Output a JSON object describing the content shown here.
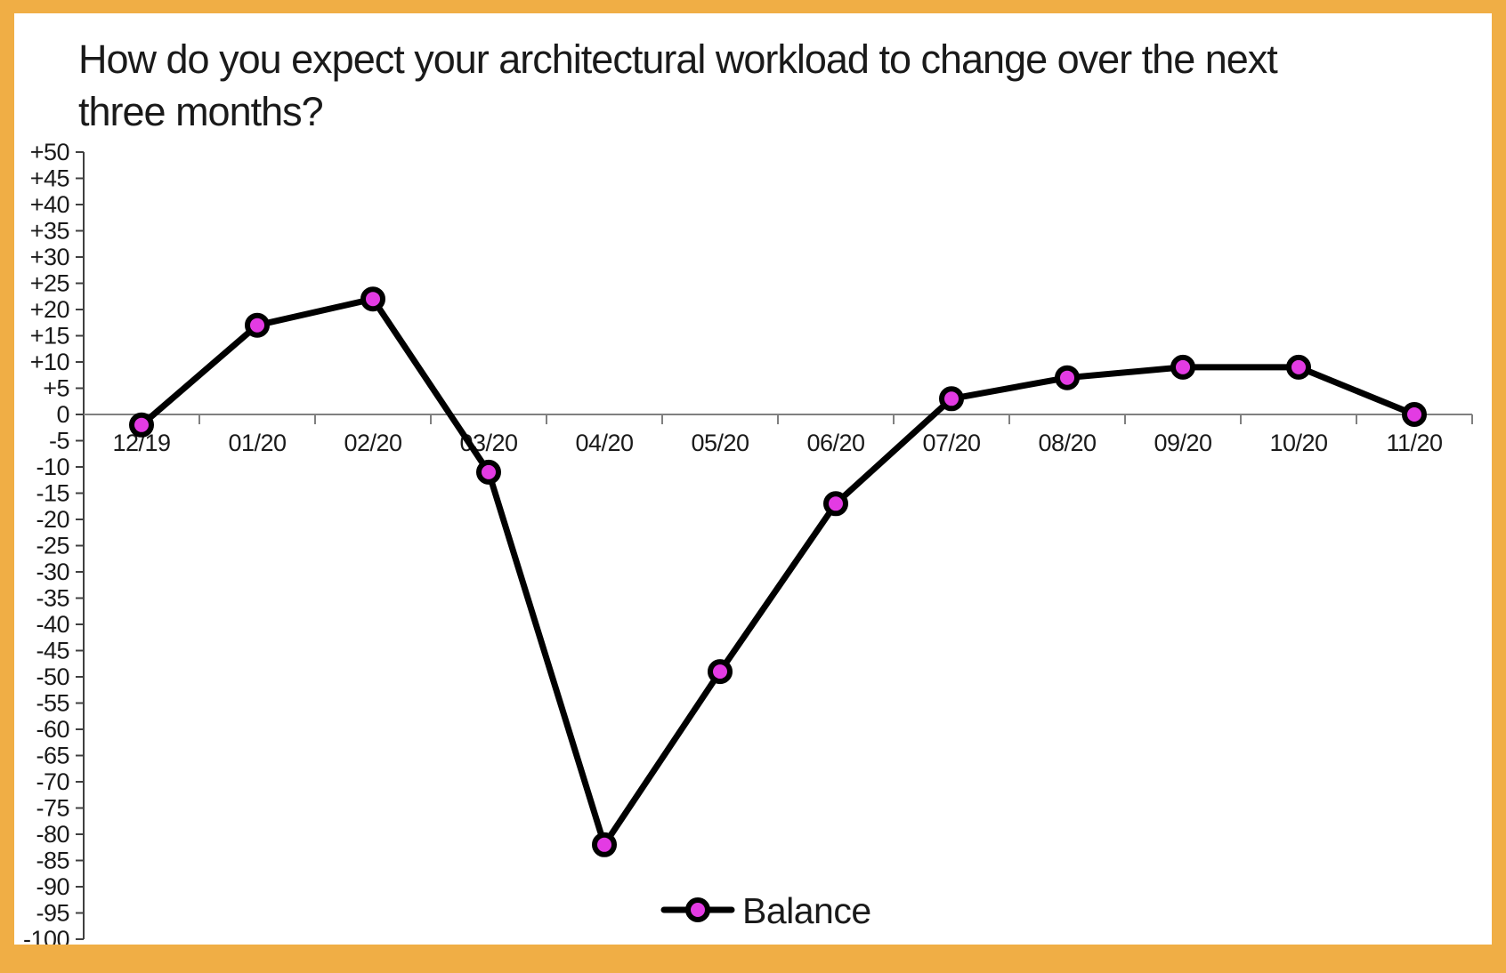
{
  "frame": {
    "border_color": "#F0AE45",
    "background_color": "#FFFFFF"
  },
  "title": {
    "line1": "How do you expect your architectural workload to change over the next",
    "line2": "three months?"
  },
  "legend": {
    "label": "Balance"
  },
  "chart_data": {
    "type": "line",
    "title": "How do you expect your architectural workload to change over the next three months?",
    "categories": [
      "12/19",
      "01/20",
      "02/20",
      "03/20",
      "04/20",
      "05/20",
      "06/20",
      "07/20",
      "08/20",
      "09/20",
      "10/20",
      "11/20"
    ],
    "series": [
      {
        "name": "Balance",
        "values": [
          -2,
          17,
          22,
          -11,
          -82,
          -49,
          -17,
          3,
          7,
          9,
          9,
          0
        ]
      }
    ],
    "ylim": [
      -100,
      50
    ],
    "ytick_step": 5,
    "ytick_labels": [
      "+50",
      "+45",
      "+40",
      "+35",
      "+30",
      "+25",
      "+20",
      "+15",
      "+10",
      "+5",
      "0",
      "-5",
      "-10",
      "-15",
      "-20",
      "-25",
      "-30",
      "-35",
      "-40",
      "-45",
      "-50",
      "-55",
      "-60",
      "-65",
      "-70",
      "-75",
      "-80",
      "-85",
      "-90",
      "-95",
      "-100"
    ],
    "xlabel": "",
    "ylabel": "",
    "grid": "zero-line-only",
    "legend_position": "bottom-center",
    "colors": {
      "line": "#000000",
      "marker_fill": "#E33BE3",
      "marker_stroke": "#000000",
      "axis": "#404040",
      "zero_line": "#808080"
    }
  }
}
